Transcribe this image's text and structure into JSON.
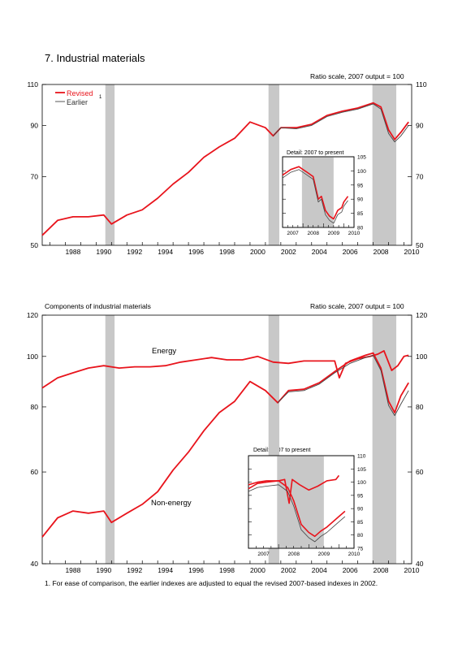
{
  "title": "7. Industrial materials",
  "footnote": "1. For ease of comparison, the earlier indexes are adjusted to equal the revised 2007-based indexes in 2002.",
  "colors": {
    "revised": "#e8141c",
    "earlier": "#888888",
    "recession": "#c8c8c8"
  },
  "chart_data": [
    {
      "type": "line",
      "title": "",
      "scale_note": "Ratio scale, 2007 output = 100",
      "y_scale": "log",
      "ylim": [
        50,
        110
      ],
      "y_ticks": [
        "50",
        "70",
        "90",
        "110"
      ],
      "x_ticks": [
        "1988",
        "1990",
        "1992",
        "1994",
        "1996",
        "1998",
        "2000",
        "2002",
        "2004",
        "2006",
        "2008",
        "2010"
      ],
      "recessions": [
        [
          1990.6,
          1991.2
        ],
        [
          2001.2,
          2001.9
        ],
        [
          2007.95,
          2009.5
        ]
      ],
      "legend": {
        "revised": "Revised",
        "earlier": "Earlier",
        "earlier_note": "1"
      },
      "series": [
        {
          "name": "Revised",
          "x": [
            1986.5,
            1987.5,
            1988.5,
            1989.5,
            1990.5,
            1991.0,
            1992.0,
            1993.0,
            1994.0,
            1995.0,
            1996.0,
            1997.0,
            1998.0,
            1999.0,
            2000.0,
            2001.0,
            2001.5,
            2002.0,
            2003.0,
            2004.0,
            2005.0,
            2006.0,
            2007.0,
            2008.0,
            2008.5,
            2009.0,
            2009.4,
            2009.8,
            2010.3
          ],
          "y": [
            52.5,
            56.5,
            57.5,
            57.5,
            58,
            55.5,
            58,
            59.5,
            63,
            67.5,
            71.5,
            77,
            81,
            84.5,
            91.5,
            89,
            85.5,
            89,
            89,
            90.5,
            94.5,
            96.5,
            98,
            100.5,
            98.5,
            88,
            84,
            87,
            91.5
          ]
        },
        {
          "name": "Earlier",
          "x": [
            2001.5,
            2002.0,
            2003.0,
            2004.0,
            2005.0,
            2006.0,
            2007.0,
            2008.0,
            2008.5,
            2009.0,
            2009.4,
            2009.8,
            2010.3
          ],
          "y": [
            85.5,
            89,
            88.5,
            90,
            94,
            96,
            97.5,
            100,
            97.5,
            86.5,
            83,
            85.5,
            90
          ]
        }
      ],
      "inset": {
        "title": "Detail: 2007 to present",
        "ylim": [
          80,
          105
        ],
        "y_ticks": [
          "80",
          "85",
          "90",
          "95",
          "100",
          "105"
        ],
        "x_ticks": [
          "2007",
          "2008",
          "2009",
          "2010"
        ],
        "series": [
          {
            "name": "Revised",
            "x": [
              2007.0,
              2007.4,
              2007.8,
              2008.0,
              2008.2,
              2008.5,
              2008.75,
              2008.9,
              2009.1,
              2009.3,
              2009.5,
              2009.7,
              2009.9,
              2010.0,
              2010.2
            ],
            "y": [
              98.5,
              100.5,
              101.5,
              100.5,
              99.5,
              98,
              90,
              91,
              86,
              84,
              83,
              86,
              87,
              89,
              91
            ]
          },
          {
            "name": "Earlier",
            "x": [
              2007.0,
              2007.4,
              2007.8,
              2008.0,
              2008.2,
              2008.5,
              2008.75,
              2008.9,
              2009.1,
              2009.3,
              2009.5,
              2009.7,
              2009.9,
              2010.0,
              2010.2
            ],
            "y": [
              97.5,
              99.5,
              100.5,
              99.5,
              98.5,
              97,
              89,
              90,
              84.5,
              82.5,
              81.5,
              84.5,
              85.5,
              87.5,
              89.5
            ]
          }
        ]
      }
    },
    {
      "type": "line",
      "title": "Components of industrial materials",
      "scale_note": "Ratio scale, 2007 output = 100",
      "y_scale": "log",
      "ylim": [
        40,
        120
      ],
      "y_ticks": [
        "40",
        "60",
        "80",
        "100",
        "120"
      ],
      "x_ticks": [
        "1988",
        "1990",
        "1992",
        "1994",
        "1996",
        "1998",
        "2000",
        "2002",
        "2004",
        "2006",
        "2008",
        "2010"
      ],
      "recessions": [
        [
          1990.6,
          1991.2
        ],
        [
          2001.2,
          2001.9
        ],
        [
          2007.95,
          2009.5
        ]
      ],
      "annotations": [
        "Energy",
        "Non-energy"
      ],
      "series": [
        {
          "name": "Energy (revised)",
          "x": [
            1986.5,
            1987.5,
            1988.5,
            1989.5,
            1990.5,
            1991.5,
            1992.5,
            1993.5,
            1994.5,
            1995.5,
            1996.5,
            1997.5,
            1998.5,
            1999.5,
            2000.5,
            2001.5,
            2002.5,
            2003.5,
            2004.5,
            2005.5,
            2005.8,
            2006.2,
            2007.0,
            2007.8,
            2008.3,
            2008.7,
            2009.2,
            2009.6,
            2010.0,
            2010.3
          ],
          "y": [
            87,
            91,
            93,
            95,
            96,
            95,
            95.5,
            95.5,
            96,
            97.5,
            98.5,
            99.5,
            98.5,
            98.5,
            100,
            97.5,
            97,
            98,
            98,
            98,
            91,
            97,
            99,
            100,
            101,
            102.5,
            94,
            96,
            100,
            100.5
          ]
        },
        {
          "name": "Non-energy (revised)",
          "x": [
            1986.5,
            1987.5,
            1988.5,
            1989.5,
            1990.5,
            1991.0,
            1992.0,
            1993.0,
            1994.0,
            1995.0,
            1996.0,
            1997.0,
            1998.0,
            1999.0,
            2000.0,
            2001.0,
            2001.8,
            2002.5,
            2003.5,
            2004.5,
            2005.5,
            2006.5,
            2007.5,
            2008.0,
            2008.5,
            2009.0,
            2009.4,
            2009.8,
            2010.3
          ],
          "y": [
            45,
            49,
            50.5,
            50,
            50.5,
            48,
            50,
            52,
            55,
            60.5,
            65.5,
            72,
            78,
            82,
            89.5,
            86,
            81.5,
            86,
            86.5,
            89,
            93.5,
            98,
            100.5,
            101.5,
            95,
            82,
            78,
            84,
            89
          ]
        },
        {
          "name": "Non-energy (earlier)",
          "x": [
            2001.8,
            2002.5,
            2003.5,
            2004.5,
            2005.5,
            2006.5,
            2007.5,
            2008.0,
            2008.5,
            2009.0,
            2009.4,
            2009.8,
            2010.3
          ],
          "y": [
            81.5,
            85.5,
            86,
            88.5,
            93,
            97,
            99.5,
            100.5,
            94,
            80.5,
            77,
            81,
            86
          ]
        }
      ],
      "inset": {
        "title": "Detail: 2007 to present",
        "ylim": [
          75,
          110
        ],
        "y_ticks": [
          "75",
          "80",
          "85",
          "90",
          "95",
          "100",
          "105",
          "110"
        ],
        "x_ticks": [
          "2007",
          "2008",
          "2009",
          "2010"
        ],
        "series": [
          {
            "name": "Energy (revised)",
            "x": [
              2007.0,
              2007.3,
              2007.6,
              2008.0,
              2008.2,
              2008.35,
              2008.45,
              2008.7,
              2009.0,
              2009.3,
              2009.6,
              2009.9,
              2010.0
            ],
            "y": [
              99,
              100,
              100.5,
              100.5,
              101,
              92,
              101,
              99,
              97,
              98.5,
              100.5,
              101,
              102.5
            ]
          },
          {
            "name": "Non-energy (revised)",
            "x": [
              2007.0,
              2007.3,
              2007.6,
              2008.0,
              2008.3,
              2008.5,
              2008.75,
              2009.0,
              2009.2,
              2009.4,
              2009.6,
              2009.8,
              2010.0,
              2010.2
            ],
            "y": [
              97.5,
              99.5,
              100,
              100.5,
              98,
              93,
              84,
              81,
              79.5,
              81.5,
              83,
              85,
              87,
              89
            ]
          },
          {
            "name": "Non-energy (earlier)",
            "x": [
              2007.0,
              2007.3,
              2007.6,
              2008.0,
              2008.3,
              2008.5,
              2008.75,
              2009.0,
              2009.2,
              2009.4,
              2009.6,
              2009.8,
              2010.0,
              2010.2
            ],
            "y": [
              96.5,
              98,
              98.5,
              99,
              96.5,
              91,
              82,
              79,
              77.5,
              79.5,
              81,
              83,
              85,
              87
            ]
          }
        ]
      }
    }
  ]
}
